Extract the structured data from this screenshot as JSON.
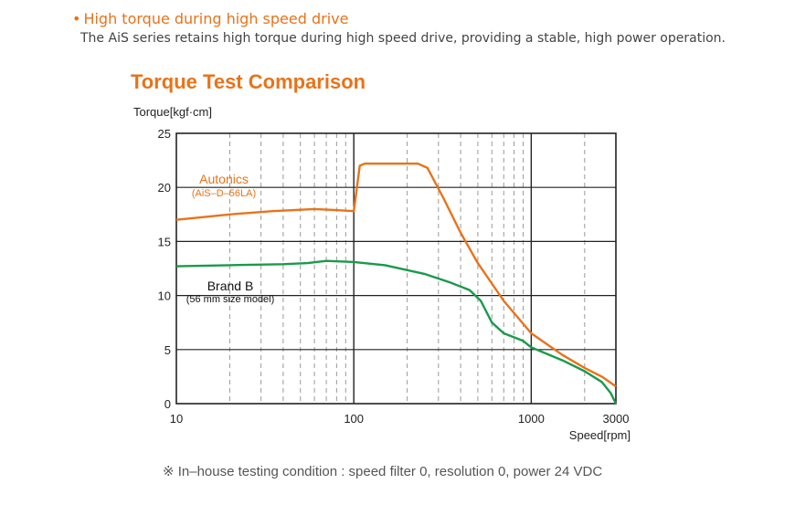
{
  "header": {
    "bullet": "•",
    "title": "High torque during high speed drive",
    "description": "The AiS series retains high torque during high speed drive, providing a stable, high power operation."
  },
  "footnote": "※ In–house testing condition : speed filter 0, resolution 0, power 24 VDC",
  "colors": {
    "accent": "#e8731a",
    "autonics": "#e8731a",
    "brand_b": "#1a9a4a"
  },
  "chart_data": {
    "type": "line",
    "title": "Torque Test Comparison",
    "xlabel": "Speed[rpm]",
    "ylabel": "Torque[kgf·cm]",
    "x_scale": "log",
    "xlim": [
      10,
      3000
    ],
    "ylim": [
      0,
      25
    ],
    "x_ticks": [
      10,
      100,
      1000,
      3000
    ],
    "x_tick_labels": [
      "10",
      "100",
      "1000",
      "3000"
    ],
    "y_ticks": [
      0,
      5,
      10,
      15,
      20,
      25
    ],
    "y_tick_labels": [
      "0",
      "5",
      "10",
      "15",
      "20",
      "25"
    ],
    "grid": true,
    "series": [
      {
        "name": "Autonics",
        "sublabel": "(AiS–D–56LA)",
        "color": "#e8731a",
        "points": [
          [
            10,
            17
          ],
          [
            20,
            17.5
          ],
          [
            35,
            17.8
          ],
          [
            60,
            18
          ],
          [
            80,
            17.9
          ],
          [
            100,
            17.8
          ],
          [
            108,
            22
          ],
          [
            115,
            22.2
          ],
          [
            160,
            22.2
          ],
          [
            230,
            22.2
          ],
          [
            260,
            21.8
          ],
          [
            320,
            19
          ],
          [
            400,
            15.8
          ],
          [
            500,
            13
          ],
          [
            700,
            9.5
          ],
          [
            1000,
            6.5
          ],
          [
            1500,
            4.5
          ],
          [
            2000,
            3.3
          ],
          [
            2500,
            2.5
          ],
          [
            3000,
            1.6
          ]
        ]
      },
      {
        "name": "Brand B",
        "sublabel": "(56 mm size model)",
        "color": "#1a9a4a",
        "points": [
          [
            10,
            12.7
          ],
          [
            20,
            12.8
          ],
          [
            40,
            12.9
          ],
          [
            55,
            13
          ],
          [
            70,
            13.2
          ],
          [
            100,
            13.1
          ],
          [
            150,
            12.8
          ],
          [
            250,
            12
          ],
          [
            350,
            11.2
          ],
          [
            450,
            10.5
          ],
          [
            520,
            9.5
          ],
          [
            600,
            7.5
          ],
          [
            700,
            6.5
          ],
          [
            900,
            5.8
          ],
          [
            1000,
            5.2
          ],
          [
            1500,
            4
          ],
          [
            2000,
            3
          ],
          [
            2500,
            2
          ],
          [
            2800,
            1
          ],
          [
            3000,
            0
          ]
        ]
      }
    ]
  }
}
